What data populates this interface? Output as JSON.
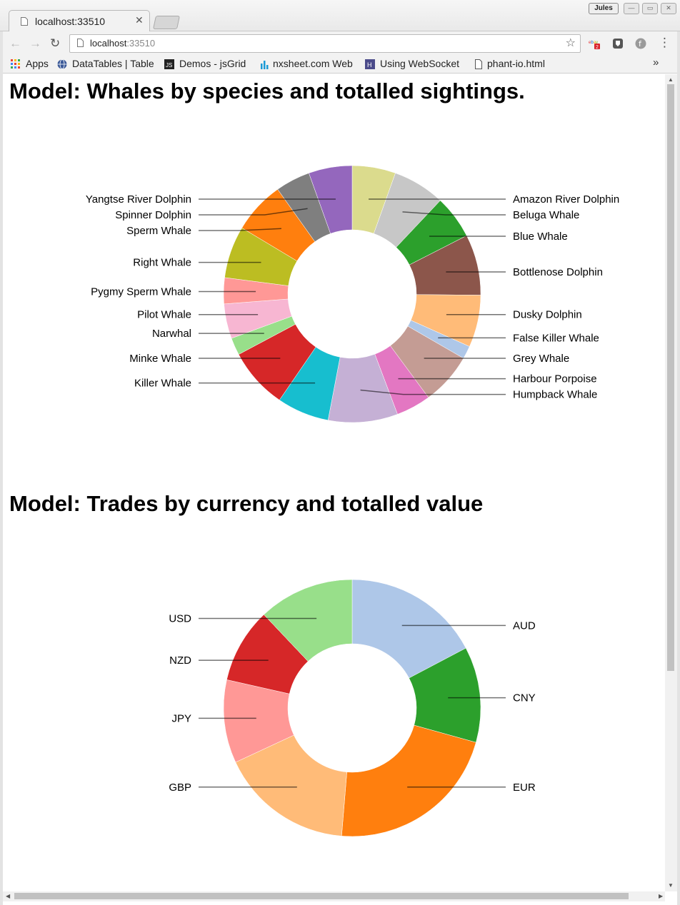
{
  "browser": {
    "tab_title": "localhost:33510",
    "url_host": "localhost",
    "url_port": ":33510",
    "profile_name": "Jules",
    "extension_badge": "2",
    "bookmarks": [
      {
        "label": "Apps",
        "icon": "apps-grid-icon"
      },
      {
        "label": "DataTables | Table",
        "icon": "globe-icon"
      },
      {
        "label": "Demos - jsGrid",
        "icon": "js-icon"
      },
      {
        "label": "nxsheet.com Web",
        "icon": "bar-chart-icon"
      },
      {
        "label": "Using WebSocket",
        "icon": "h-logo-icon"
      },
      {
        "label": "phant-io.html",
        "icon": "file-icon"
      }
    ]
  },
  "page": {
    "heading_whales": "Model: Whales by species and totalled sightings.",
    "heading_trades": "Model: Trades by currency and totalled value"
  },
  "chart_data": [
    {
      "type": "pie",
      "donut": true,
      "labels_outside": true,
      "slices": [
        {
          "label": "Amazon River Dolphin",
          "value": 5,
          "color": "#dbdb8d"
        },
        {
          "label": "Beluga Whale",
          "value": 6,
          "color": "#c7c7c7"
        },
        {
          "label": "Blue Whale",
          "value": 5,
          "color": "#2ca02c"
        },
        {
          "label": "Bottlenose Dolphin",
          "value": 7,
          "color": "#8c564b"
        },
        {
          "label": "Dusky Dolphin",
          "value": 6,
          "color": "#ffbb78"
        },
        {
          "label": "False Killer Whale",
          "value": 1.5,
          "color": "#aec7e8"
        },
        {
          "label": "Grey Whale",
          "value": 6,
          "color": "#c49c94"
        },
        {
          "label": "Harbour Porpoise",
          "value": 4,
          "color": "#e377c2"
        },
        {
          "label": "Humpback Whale",
          "value": 8,
          "color": "#c5b0d5"
        },
        {
          "label": "Killer Whale",
          "value": 6,
          "color": "#17becf"
        },
        {
          "label": "Minke Whale",
          "value": 7,
          "color": "#d62728"
        },
        {
          "label": "Narwhal",
          "value": 2,
          "color": "#98df8a"
        },
        {
          "label": "Pilot Whale",
          "value": 4,
          "color": "#f7b6d2"
        },
        {
          "label": "Pygmy Sperm Whale",
          "value": 3,
          "color": "#ff9896"
        },
        {
          "label": "Right Whale",
          "value": 6,
          "color": "#bcbd22"
        },
        {
          "label": "Sperm Whale",
          "value": 6,
          "color": "#ff7f0e"
        },
        {
          "label": "Spinner Dolphin",
          "value": 4,
          "color": "#7f7f7f"
        },
        {
          "label": "Yangtse River Dolphin",
          "value": 5,
          "color": "#9467bd"
        }
      ]
    },
    {
      "type": "pie",
      "donut": true,
      "labels_outside": true,
      "slices": [
        {
          "label": "AUD",
          "value": 16.5,
          "color": "#aec7e8"
        },
        {
          "label": "CNY",
          "value": 11.5,
          "color": "#2ca02c"
        },
        {
          "label": "EUR",
          "value": 21,
          "color": "#ff7f0e"
        },
        {
          "label": "GBP",
          "value": 16,
          "color": "#ffbb78"
        },
        {
          "label": "JPY",
          "value": 10,
          "color": "#ff9896"
        },
        {
          "label": "NZD",
          "value": 9,
          "color": "#d62728"
        },
        {
          "label": "USD",
          "value": 11.5,
          "color": "#98df8a"
        }
      ]
    }
  ]
}
